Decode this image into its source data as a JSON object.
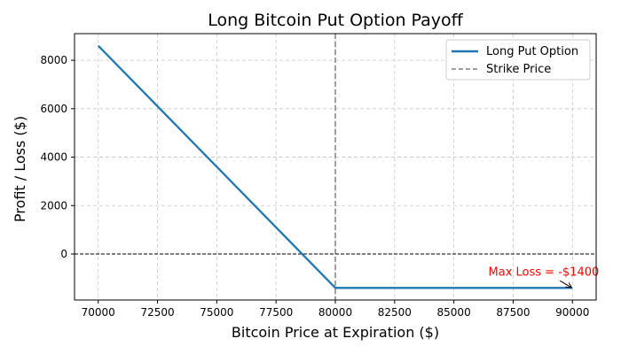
{
  "chart_data": {
    "type": "line",
    "title": "Long Bitcoin Put Option Payoff",
    "xlabel": "Bitcoin Price at Expiration ($)",
    "ylabel": "Profit / Loss ($)",
    "xlim": [
      69000,
      91000
    ],
    "ylim": [
      -1900,
      9100
    ],
    "xticks": [
      70000,
      72500,
      75000,
      77500,
      80000,
      82500,
      85000,
      87500,
      90000
    ],
    "yticks": [
      0,
      2000,
      4000,
      6000,
      8000
    ],
    "grid": true,
    "legend_position": "top-right",
    "series": [
      {
        "name": "Long Put Option",
        "color": "#1f77b4",
        "x": [
          70000,
          80000,
          90000
        ],
        "y": [
          8600,
          -1400,
          -1400
        ]
      }
    ],
    "reference_lines": [
      {
        "name": "Strike Price",
        "orientation": "vertical",
        "value": 80000,
        "color": "#808080",
        "style": "dashed"
      },
      {
        "name": "",
        "orientation": "horizontal",
        "value": 0,
        "color": "#000000",
        "style": "dashed"
      }
    ],
    "annotations": [
      {
        "text": "Max Loss = -$1400",
        "x": 90000,
        "y": -1400,
        "color": "#ff0000"
      }
    ]
  }
}
